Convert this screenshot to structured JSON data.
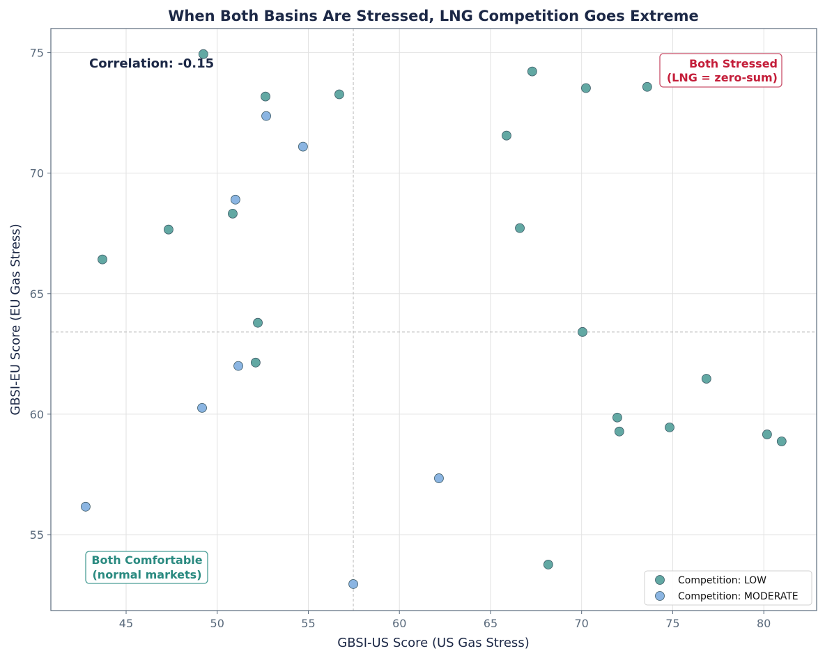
{
  "chart_data": {
    "type": "scatter",
    "title": "When Both Basins Are Stressed, LNG Competition Goes Extreme",
    "xlabel": "GBSI-US Score (US Gas Stress)",
    "ylabel": "GBSI-EU Score (EU Gas Stress)",
    "xlim": [
      40.87,
      82.9
    ],
    "ylim": [
      51.85,
      76.0
    ],
    "xticks": [
      45,
      50,
      55,
      60,
      65,
      70,
      75,
      80
    ],
    "yticks": [
      55,
      60,
      65,
      70,
      75
    ],
    "grid": true,
    "legend_placement": "lower-right",
    "reference_lines": {
      "x": 57.47,
      "y": 63.41
    },
    "annotations": {
      "correlation": "Correlation: -0.15",
      "top_right": [
        "Both Stressed",
        "(LNG = zero-sum)"
      ],
      "bottom_left": [
        "Both Comfortable",
        "(normal markets)"
      ]
    },
    "colors": {
      "low": "#62a8a3",
      "moderate": "#8bb5e2",
      "stressed": "#c41e3a",
      "comfortable": "#2a8a80",
      "text": "#1c2846"
    },
    "series": [
      {
        "name": "Competition: LOW",
        "points": [
          [
            49.24,
            74.94
          ],
          [
            52.65,
            73.18
          ],
          [
            56.7,
            73.27
          ],
          [
            67.29,
            74.22
          ],
          [
            70.24,
            73.53
          ],
          [
            73.6,
            73.58
          ],
          [
            65.88,
            71.56
          ],
          [
            50.85,
            68.32
          ],
          [
            47.33,
            67.66
          ],
          [
            66.61,
            67.72
          ],
          [
            43.7,
            66.42
          ],
          [
            52.23,
            63.79
          ],
          [
            70.05,
            63.41
          ],
          [
            52.11,
            62.14
          ],
          [
            76.85,
            61.47
          ],
          [
            71.96,
            59.86
          ],
          [
            72.07,
            59.28
          ],
          [
            74.83,
            59.45
          ],
          [
            80.18,
            59.16
          ],
          [
            80.98,
            58.87
          ],
          [
            68.17,
            53.76
          ]
        ]
      },
      {
        "name": "Competition: MODERATE",
        "points": [
          [
            52.69,
            72.37
          ],
          [
            54.71,
            71.1
          ],
          [
            51.0,
            68.9
          ],
          [
            51.16,
            62.0
          ],
          [
            49.17,
            60.26
          ],
          [
            62.17,
            57.34
          ],
          [
            42.78,
            56.16
          ],
          [
            57.47,
            52.95
          ]
        ]
      }
    ]
  }
}
